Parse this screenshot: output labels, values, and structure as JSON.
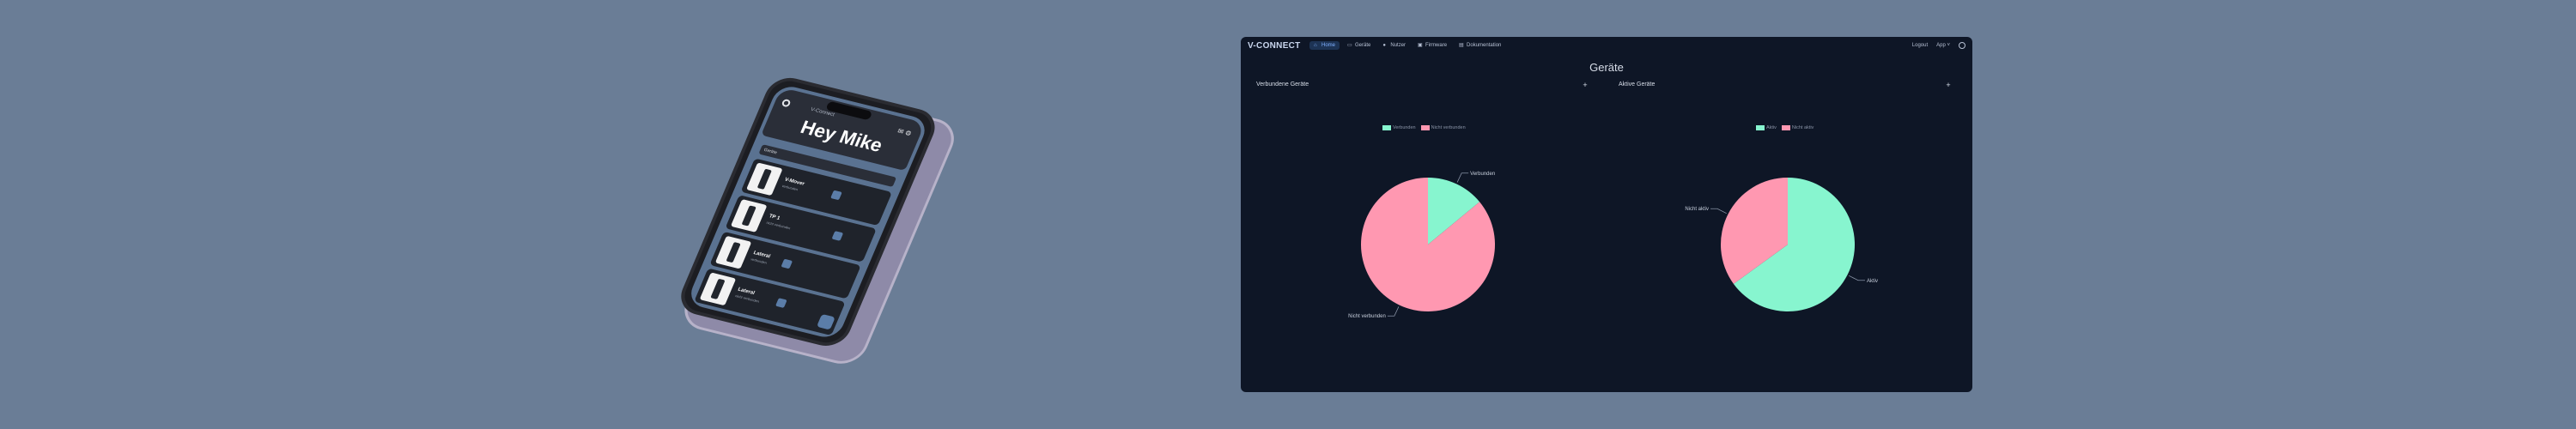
{
  "colors": {
    "background": "#6a7d96",
    "app_bg": "#0e1626",
    "teal": "#87f5cf",
    "pink": "#ff98b1",
    "accent": "#7fb0ff"
  },
  "phone": {
    "brand": "V-Connect",
    "title": "Hey Mike",
    "search_placeholder": "Geräte",
    "items": [
      {
        "name": "V-Mover",
        "sub": "verbunden"
      },
      {
        "name": "TP 1",
        "sub": "nicht verbunden"
      },
      {
        "name": "Lateral",
        "sub": "verbunden"
      },
      {
        "name": "Lateral",
        "sub": "nicht verbunden"
      }
    ]
  },
  "app": {
    "logo": "V-CONNECT",
    "nav": [
      {
        "label": "Home",
        "icon": "home-icon",
        "active": true
      },
      {
        "label": "Geräte",
        "icon": "device-icon",
        "active": false
      },
      {
        "label": "Nutzer",
        "icon": "user-icon",
        "active": false
      },
      {
        "label": "Firmware",
        "icon": "firmware-icon",
        "active": false
      },
      {
        "label": "Dokumentation",
        "icon": "document-icon",
        "active": false
      }
    ],
    "logout": "Logout",
    "language": "App ˅",
    "page_title": "Geräte",
    "card_left_title": "Verbundene Geräte",
    "card_right_title": "Aktive Geräte",
    "card_btn": "+"
  },
  "chart_data": [
    {
      "type": "pie",
      "title": "Verbundene Geräte",
      "series": [
        {
          "name": "Verbunden",
          "value": 14,
          "color": "#87f5cf"
        },
        {
          "name": "Nicht verbunden",
          "value": 86,
          "color": "#ff98b1"
        }
      ],
      "legend": "top-center"
    },
    {
      "type": "pie",
      "title": "Aktive Geräte",
      "series": [
        {
          "name": "Aktiv",
          "value": 65,
          "color": "#87f5cf"
        },
        {
          "name": "Nicht aktiv",
          "value": 35,
          "color": "#ff98b1"
        }
      ],
      "legend": "top-center"
    }
  ]
}
